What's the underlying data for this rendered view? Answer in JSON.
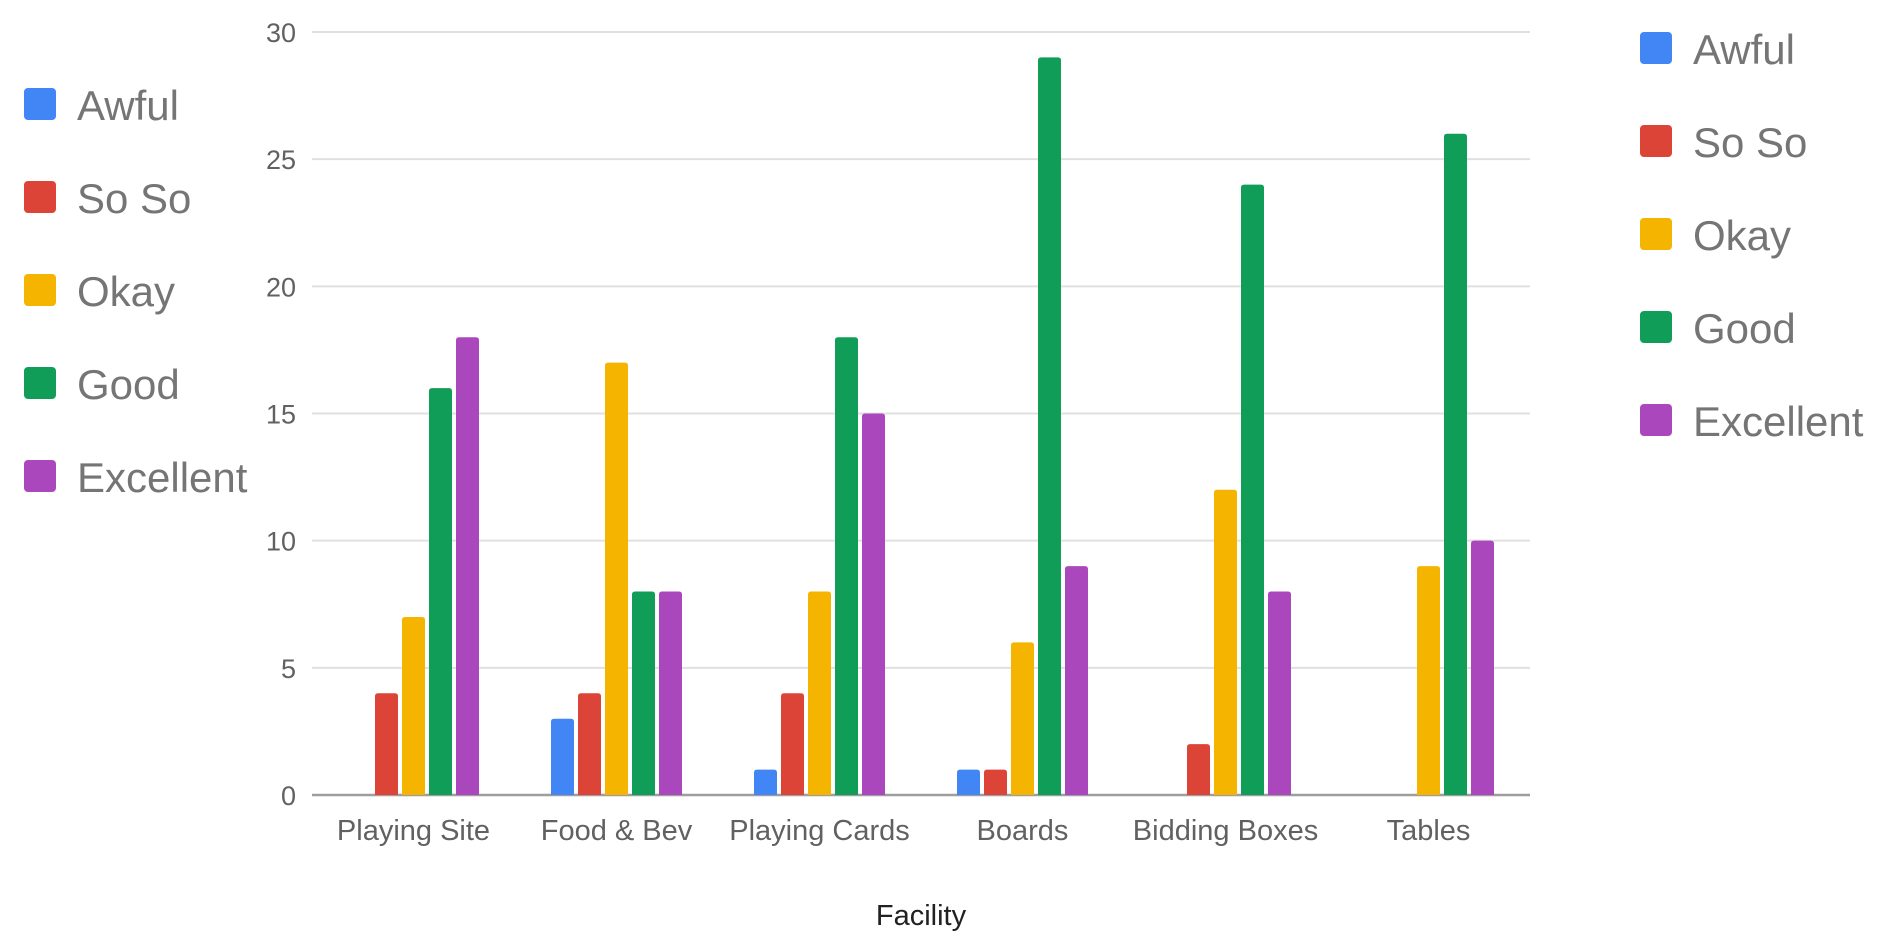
{
  "chart_data": {
    "type": "bar",
    "title": "",
    "xlabel": "Facility",
    "ylabel": "",
    "ylim": [
      0,
      30
    ],
    "yticks": [
      0,
      5,
      10,
      15,
      20,
      25,
      30
    ],
    "grid": true,
    "legend_placement": "left and right (duplicated)",
    "categories": [
      "Playing Site",
      "Food & Bev",
      "Playing Cards",
      "Boards",
      "Bidding Boxes",
      "Tables"
    ],
    "series": [
      {
        "name": "Awful",
        "color": "#4285f4",
        "values": [
          0,
          3,
          1,
          1,
          0,
          0
        ]
      },
      {
        "name": "So So",
        "color": "#db4437",
        "values": [
          4,
          4,
          4,
          1,
          2,
          0
        ]
      },
      {
        "name": "Okay",
        "color": "#f4b400",
        "values": [
          7,
          17,
          8,
          6,
          12,
          9
        ]
      },
      {
        "name": "Good",
        "color": "#0f9d58",
        "values": [
          16,
          8,
          18,
          29,
          24,
          26
        ]
      },
      {
        "name": "Excellent",
        "color": "#ab47bc",
        "values": [
          18,
          8,
          15,
          9,
          8,
          10
        ]
      }
    ]
  }
}
